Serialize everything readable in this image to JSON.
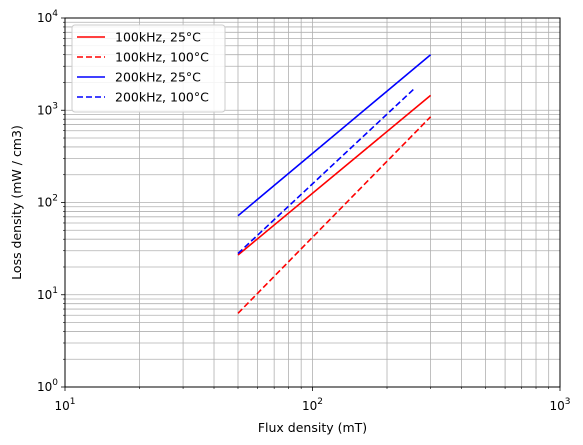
{
  "chart_data": {
    "type": "line",
    "xscale": "log",
    "yscale": "log",
    "xlim": [
      10,
      1000
    ],
    "ylim": [
      1,
      10000
    ],
    "xlabel": "Flux density (mT)",
    "ylabel": "Loss density (mW / cm3)",
    "x_ticks": [
      10,
      100,
      1000
    ],
    "y_ticks": [
      1,
      10,
      100,
      1000,
      10000
    ],
    "grid": "major and minor",
    "legend_position": "upper-left",
    "series": [
      {
        "name": "100kHz, 25°C",
        "color": "#ff0000",
        "style": "solid",
        "x": [
          50,
          300
        ],
        "y": [
          27,
          1450
        ]
      },
      {
        "name": "100kHz, 100°C",
        "color": "#ff0000",
        "style": "dashed",
        "x": [
          50,
          300
        ],
        "y": [
          6.3,
          850
        ]
      },
      {
        "name": "200kHz, 25°C",
        "color": "#0000ff",
        "style": "solid",
        "x": [
          50,
          300
        ],
        "y": [
          72,
          4000
        ]
      },
      {
        "name": "200kHz, 100°C",
        "color": "#0000ff",
        "style": "dashed",
        "x": [
          50,
          260
        ],
        "y": [
          28,
          1750
        ]
      }
    ]
  }
}
